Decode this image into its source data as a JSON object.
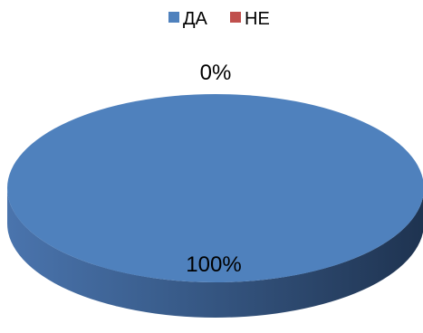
{
  "chart_data": {
    "type": "pie",
    "style": "3d",
    "categories": [
      "ДА",
      "НЕ"
    ],
    "values": [
      100,
      0
    ],
    "data_labels": [
      "100%",
      "0%"
    ],
    "colors": [
      "#4f81bd",
      "#c0504d"
    ],
    "legend_position": "top"
  }
}
